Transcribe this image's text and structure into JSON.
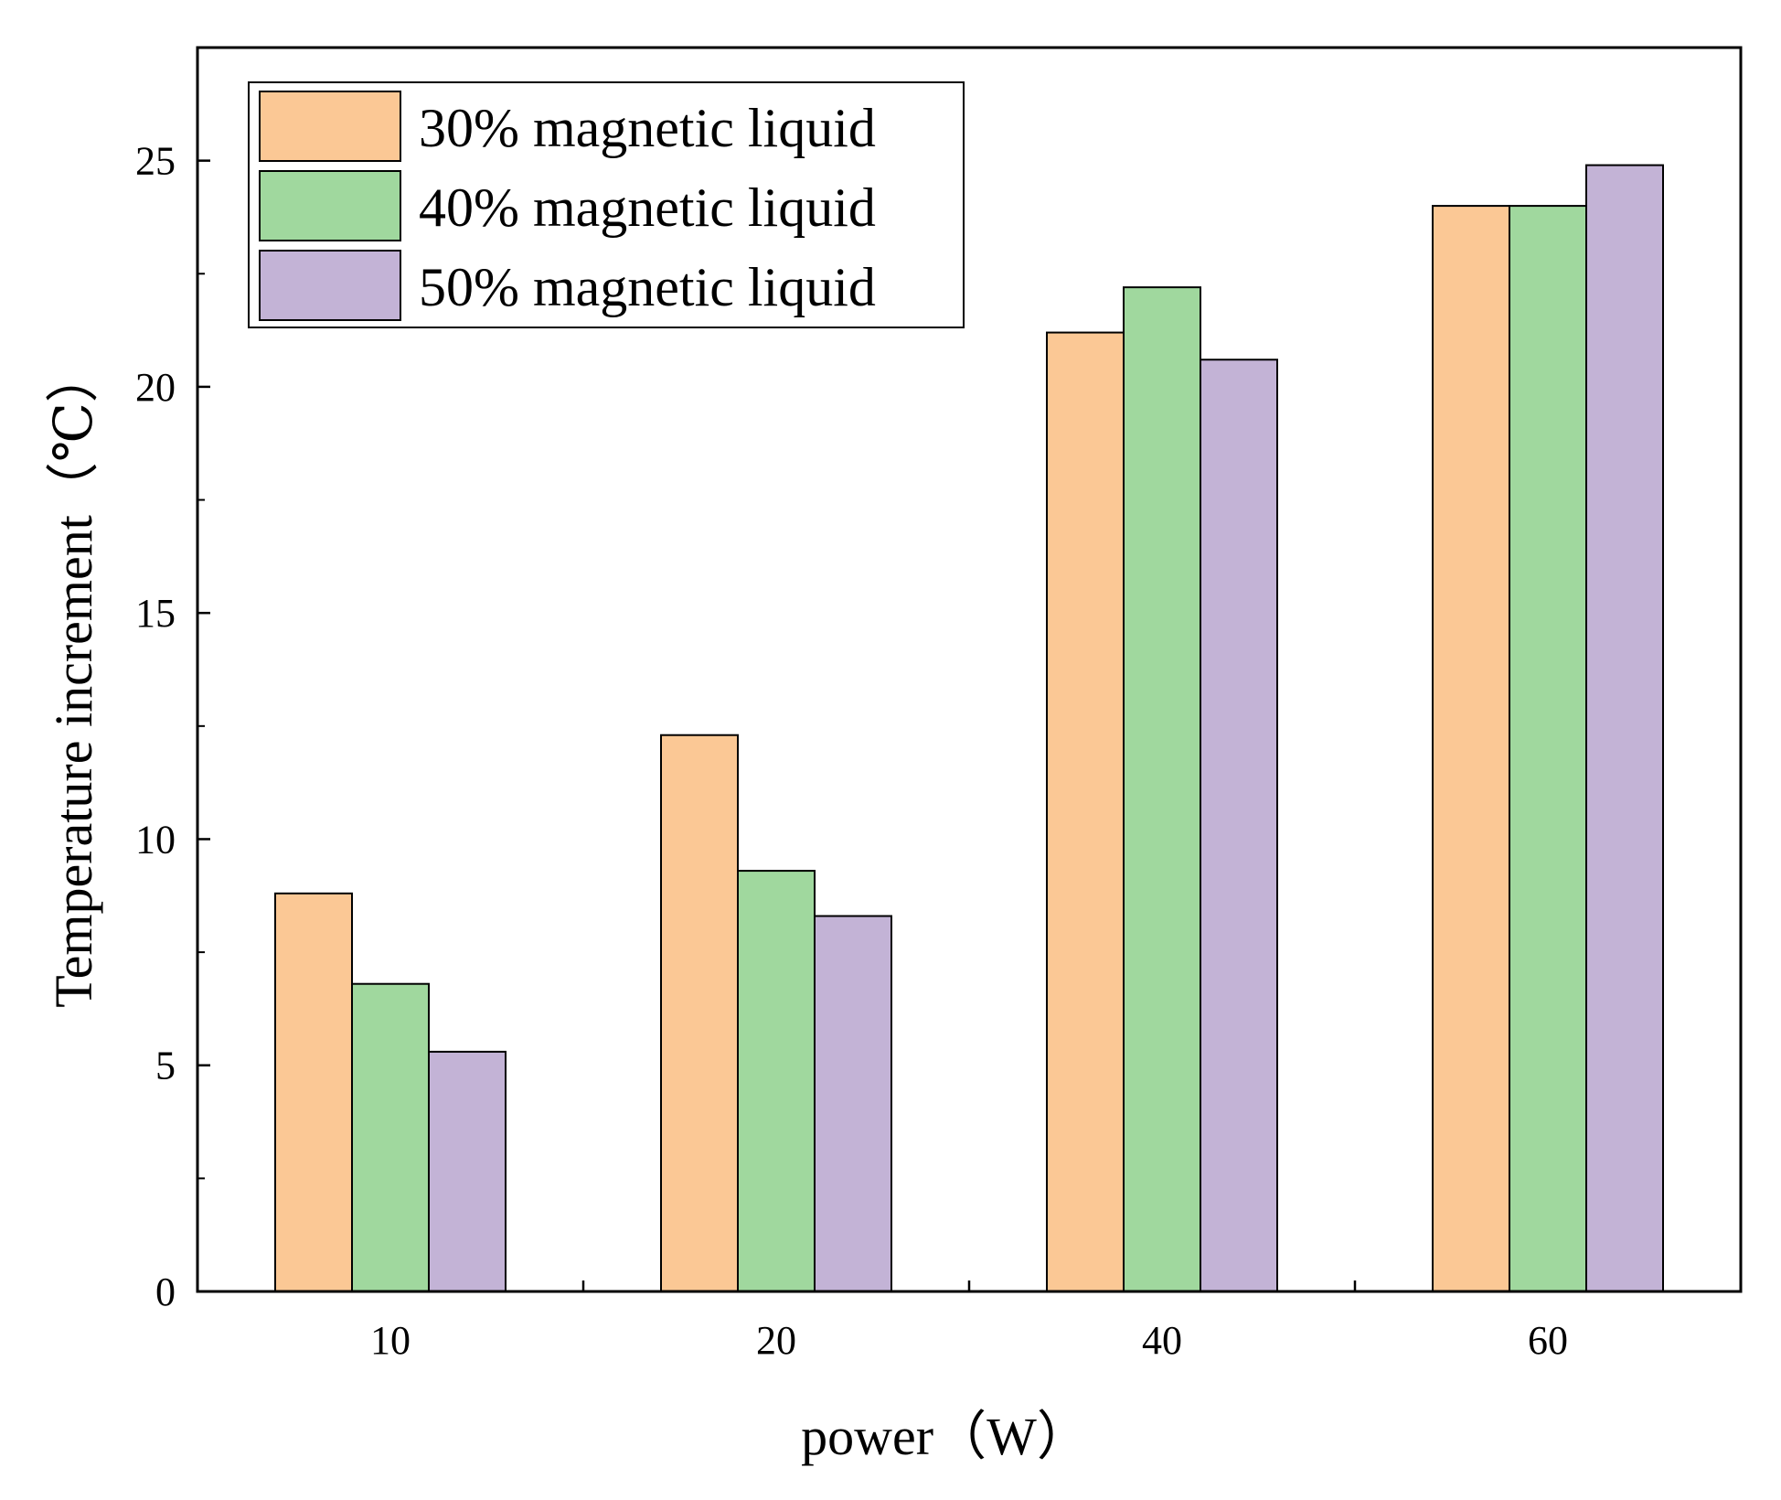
{
  "chart_data": {
    "type": "bar",
    "title": "",
    "xlabel": "power（W）",
    "ylabel": "Temperature increment（℃）",
    "categories": [
      "10",
      "20",
      "40",
      "60"
    ],
    "ylim": [
      0,
      27.5
    ],
    "yticks": [
      0,
      5,
      10,
      15,
      20,
      25
    ],
    "yticks_minor": [
      2.5,
      7.5,
      12.5,
      17.5,
      22.5
    ],
    "grid": false,
    "legend_position": "top-left",
    "series": [
      {
        "name": "30% magnetic liquid",
        "color": "#FBC895",
        "values": [
          8.8,
          12.3,
          21.2,
          24.0
        ]
      },
      {
        "name": "40% magnetic liquid",
        "color": "#A0D89E",
        "values": [
          6.8,
          9.3,
          22.2,
          24.0
        ]
      },
      {
        "name": "50% magnetic liquid",
        "color": "#C3B3D6",
        "values": [
          5.3,
          8.3,
          20.6,
          24.9
        ]
      }
    ]
  }
}
